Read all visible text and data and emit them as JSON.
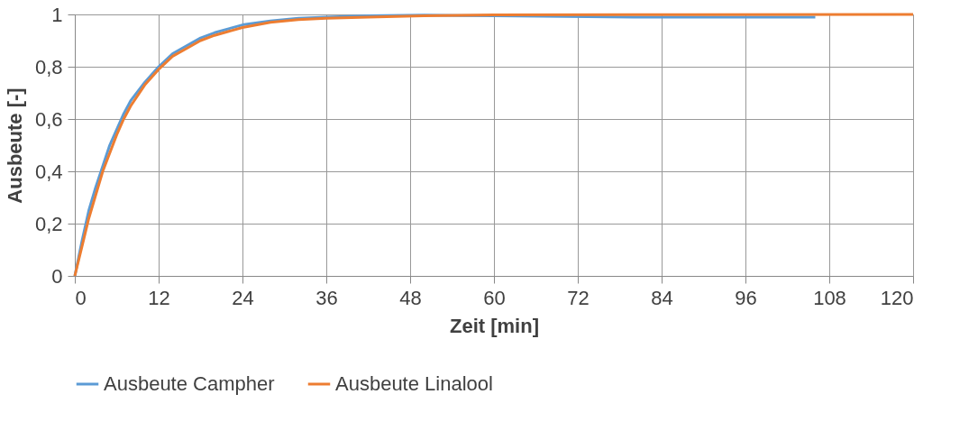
{
  "chart_data": {
    "type": "line",
    "xlabel": "Zeit [min]",
    "ylabel": "Ausbeute [-]",
    "xlim": [
      0,
      120
    ],
    "xticks": [
      0,
      12,
      24,
      36,
      48,
      60,
      72,
      84,
      96,
      108,
      120
    ],
    "ylim": [
      0,
      1
    ],
    "yticks": [
      0,
      {
        "value": 0.2,
        "label": "0,2"
      },
      {
        "value": 0.4,
        "label": "0,4"
      },
      {
        "value": 0.6,
        "label": "0,6"
      },
      {
        "value": 0.8,
        "label": "0,8"
      },
      1
    ],
    "grid": true,
    "legend": "bottom",
    "marker": "none",
    "line_style": "solid",
    "series": [
      {
        "name": "Ausbeute Campher",
        "color": "#5b9bd5",
        "x": [
          0,
          1,
          2,
          3,
          4,
          5,
          6,
          7,
          8,
          10,
          12,
          14,
          16,
          18,
          20,
          24,
          28,
          32,
          36,
          42,
          50,
          60,
          80,
          106
        ],
        "values": [
          0,
          0.13,
          0.25,
          0.34,
          0.42,
          0.5,
          0.56,
          0.62,
          0.67,
          0.74,
          0.8,
          0.85,
          0.88,
          0.91,
          0.93,
          0.96,
          0.975,
          0.985,
          0.99,
          0.995,
          0.997,
          0.995,
          0.99,
          0.99
        ]
      },
      {
        "name": "Ausbeute Linalool",
        "color": "#ed7d31",
        "x": [
          0,
          1,
          2,
          3,
          4,
          5,
          6,
          7,
          8,
          10,
          12,
          14,
          16,
          18,
          20,
          24,
          28,
          32,
          36,
          42,
          50,
          60,
          80,
          120
        ],
        "values": [
          0,
          0.11,
          0.22,
          0.31,
          0.4,
          0.47,
          0.54,
          0.6,
          0.65,
          0.73,
          0.79,
          0.84,
          0.87,
          0.9,
          0.92,
          0.95,
          0.97,
          0.98,
          0.985,
          0.99,
          0.995,
          0.998,
          0.999,
          1
        ]
      }
    ]
  }
}
